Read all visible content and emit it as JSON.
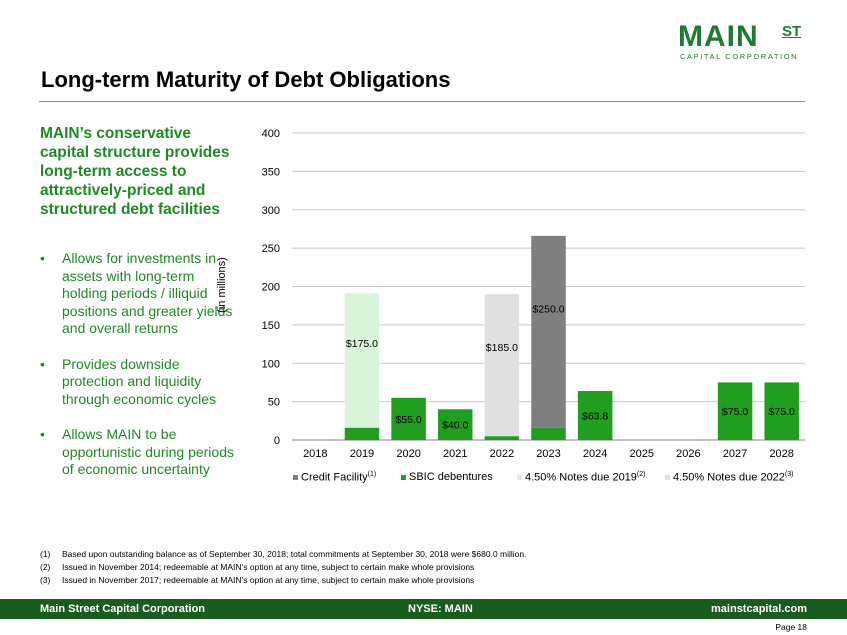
{
  "logo": {
    "main": "MAIN",
    "st": "ST",
    "sub": "CAPITAL CORPORATION"
  },
  "page_title": "Long-term Maturity of Debt Obligations",
  "headline": "MAIN’s conservative capital structure provides long-term access to attractively-priced and structured debt facilities",
  "bullets": [
    "Allows for investments in assets with long-term holding periods / illiquid positions and greater yields and overall returns",
    "Provides downside protection and liquidity through economic cycles",
    "Allows MAIN to be opportunistic during periods of economic uncertainty"
  ],
  "bullet_symbol": "•",
  "colors": {
    "headline_green": "#1f8a22",
    "footer_green": "#1a5c1e",
    "credit_facility": "#7f7f7f",
    "sbic": "#1f9e1f",
    "notes_2019": "#d9f5d9",
    "notes_2022": "#e0e0e0"
  },
  "chart_data": {
    "type": "bar",
    "stacked": true,
    "ylabel": "(in millions)",
    "ylim": [
      0,
      400
    ],
    "yticks": [
      0,
      50,
      100,
      150,
      200,
      250,
      300,
      350,
      400
    ],
    "grid": true,
    "legend_position": "bottom",
    "categories": [
      "2018",
      "2019",
      "2020",
      "2021",
      "2022",
      "2023",
      "2024",
      "2025",
      "2026",
      "2027",
      "2028"
    ],
    "series": [
      {
        "name": "Credit Facility",
        "sup": "(1)",
        "color": "#7f7f7f",
        "values": [
          0,
          0,
          0,
          0,
          0,
          250,
          0,
          0,
          0,
          0,
          0
        ],
        "labels": [
          "",
          "",
          "",
          "",
          "",
          "$250.0",
          "",
          "",
          "",
          "",
          ""
        ]
      },
      {
        "name": "SBIC debentures",
        "sup": "",
        "color": "#1f9e1f",
        "values": [
          0,
          16,
          55,
          40,
          5,
          16,
          63.8,
          0,
          0,
          75,
          75
        ],
        "labels": [
          "",
          "$16.0",
          "$55.0",
          "$40.0",
          "$5.0",
          "$16.0",
          "$63.8",
          "",
          "",
          "$75.0",
          "$75.0"
        ]
      },
      {
        "name": "4.50% Notes due 2019",
        "sup": "(2)",
        "color": "#d9f5d9",
        "values": [
          0,
          175,
          0,
          0,
          0,
          0,
          0,
          0,
          0,
          0,
          0
        ],
        "labels": [
          "",
          "$175.0",
          "",
          "",
          "",
          "",
          "",
          "",
          "",
          "",
          ""
        ]
      },
      {
        "name": "4.50% Notes due 2022",
        "sup": "(3)",
        "color": "#e0e0e0",
        "values": [
          0,
          0,
          0,
          0,
          185,
          0,
          0,
          0,
          0,
          0,
          0
        ],
        "labels": [
          "",
          "",
          "",
          "",
          "$185.0",
          "",
          "",
          "",
          "",
          "",
          ""
        ]
      }
    ]
  },
  "footnotes": [
    {
      "num": "(1)",
      "text": "Based upon outstanding balance as of September 30, 2018; total commitments at September 30, 2018 were $680.0 million."
    },
    {
      "num": "(2)",
      "text": "Issued in November 2014; redeemable at MAIN’s option at any time, subject to certain make whole provisions"
    },
    {
      "num": "(3)",
      "text": "Issued in November 2017; redeemable at MAIN’s option at any time, subject to certain make whole provisions"
    }
  ],
  "footer": {
    "left": "Main Street Capital Corporation",
    "middle": "NYSE: MAIN",
    "right": "mainstcapital.com"
  },
  "page": "Page  18"
}
